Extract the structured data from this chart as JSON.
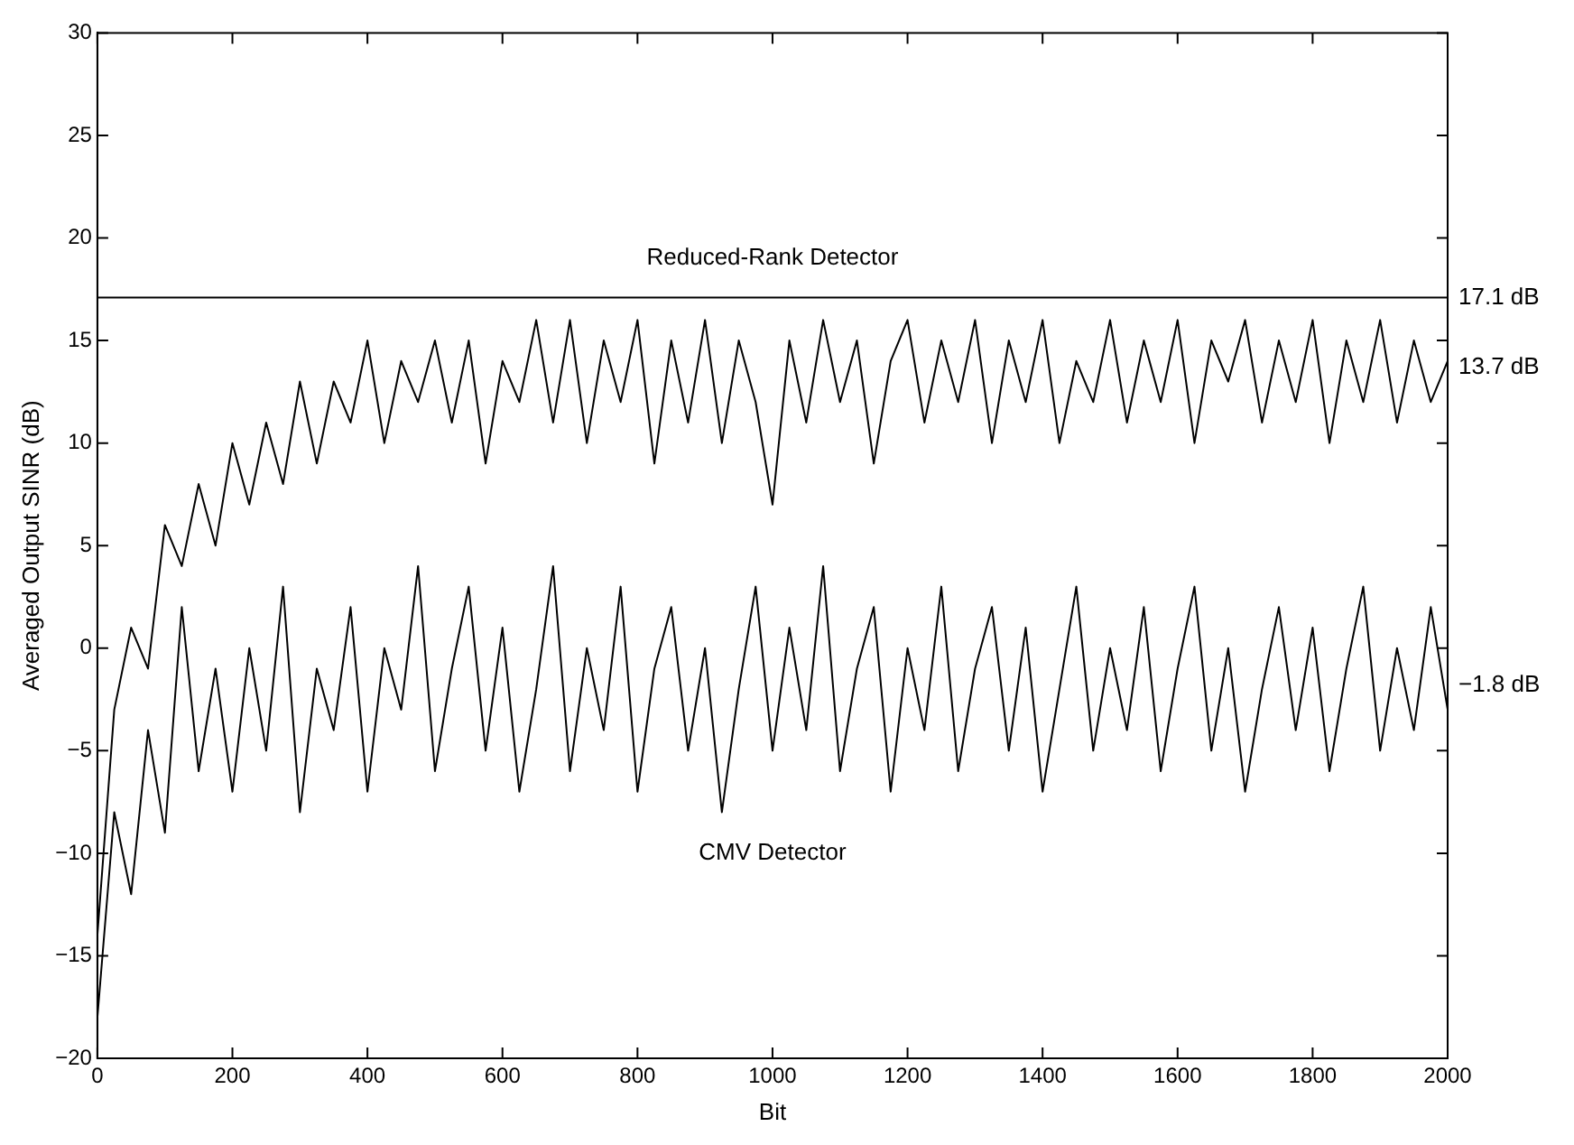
{
  "chart_data": {
    "type": "line",
    "xlabel": "Bit",
    "ylabel": "Averaged Output SINR (dB)",
    "x": [
      0,
      25,
      50,
      75,
      100,
      125,
      150,
      175,
      200,
      225,
      250,
      275,
      300,
      325,
      350,
      375,
      400,
      425,
      450,
      475,
      500,
      525,
      550,
      575,
      600,
      625,
      650,
      675,
      700,
      725,
      750,
      775,
      800,
      825,
      850,
      875,
      900,
      925,
      950,
      975,
      1000,
      1025,
      1050,
      1075,
      1100,
      1125,
      1150,
      1175,
      1200,
      1225,
      1250,
      1275,
      1300,
      1325,
      1350,
      1375,
      1400,
      1425,
      1450,
      1475,
      1500,
      1525,
      1550,
      1575,
      1600,
      1625,
      1650,
      1675,
      1700,
      1725,
      1750,
      1775,
      1800,
      1825,
      1850,
      1875,
      1900,
      1925,
      1950,
      1975,
      2000
    ],
    "series": [
      {
        "color": "#000000",
        "values": [
          -14,
          -3,
          1,
          -1,
          6,
          4,
          8,
          5,
          10,
          7,
          11,
          8,
          13,
          9,
          13,
          11,
          15,
          10,
          14,
          12,
          15,
          11,
          15,
          9,
          14,
          12,
          16,
          11,
          16,
          10,
          15,
          12,
          16,
          9,
          15,
          11,
          16,
          10,
          15,
          12,
          7,
          15,
          11,
          16,
          12,
          15,
          9,
          14,
          16,
          11,
          15,
          12,
          16,
          10,
          15,
          12,
          16,
          10,
          14,
          12,
          16,
          11,
          15,
          12,
          16,
          10,
          15,
          13,
          16,
          11,
          15,
          12,
          16,
          10,
          15,
          12,
          16,
          11,
          15,
          12,
          14
        ]
      },
      {
        "color": "#000000",
        "values": [
          -18,
          -8,
          -12,
          -4,
          -9,
          2,
          -6,
          -1,
          -7,
          0,
          -5,
          3,
          -8,
          -1,
          -4,
          2,
          -7,
          0,
          -3,
          4,
          -6,
          -1,
          3,
          -5,
          1,
          -7,
          -2,
          4,
          -6,
          0,
          -4,
          3,
          -7,
          -1,
          2,
          -5,
          0,
          -8,
          -2,
          3,
          -5,
          1,
          -4,
          4,
          -6,
          -1,
          2,
          -7,
          0,
          -4,
          3,
          -6,
          -1,
          2,
          -5,
          1,
          -7,
          -2,
          3,
          -5,
          0,
          -4,
          2,
          -6,
          -1,
          3,
          -5,
          0,
          -7,
          -2,
          2,
          -4,
          1,
          -6,
          -1,
          3,
          -5,
          0,
          -4,
          2,
          -3
        ]
      }
    ],
    "xlim": [
      0,
      2000
    ],
    "xticks": [
      0,
      200,
      400,
      600,
      800,
      1000,
      1200,
      1400,
      1600,
      1800,
      2000
    ],
    "ylim": [
      -20,
      30
    ],
    "yticks": [
      -20,
      -15,
      -10,
      -5,
      0,
      5,
      10,
      15,
      20,
      25,
      30
    ],
    "ref_lines": [
      {
        "axis": "y",
        "value": 17.1,
        "label": "17.1 dB"
      }
    ],
    "annotations": [
      "Reduced-Rank Detector",
      "CMV Detector",
      {
        "text": "13.7 dB",
        "x": 2000,
        "y": 13.7
      },
      {
        "text": "−1.8 dB",
        "x": 2000,
        "y": -1.8
      }
    ],
    "grid": false,
    "legend": false,
    "marker": "none",
    "line_style": "solid"
  }
}
